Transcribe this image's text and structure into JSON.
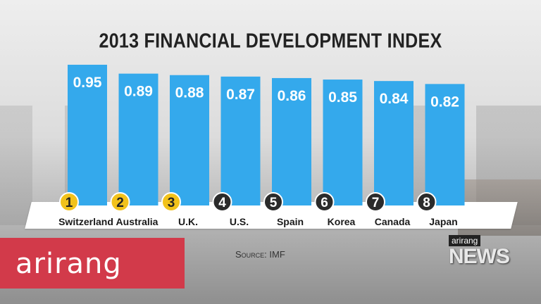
{
  "chart_data": {
    "type": "bar",
    "title": "2013 FINANCIAL DEVELOPMENT INDEX",
    "categories": [
      "Switzerland",
      "Australia",
      "U.K.",
      "U.S.",
      "Spain",
      "Korea",
      "Canada",
      "Japan"
    ],
    "ranks": [
      "1",
      "2",
      "3",
      "4",
      "5",
      "6",
      "7",
      "8"
    ],
    "values": [
      0.95,
      0.89,
      0.88,
      0.87,
      0.86,
      0.85,
      0.84,
      0.82
    ],
    "value_labels": [
      "0.95",
      "0.89",
      "0.88",
      "0.87",
      "0.86",
      "0.85",
      "0.84",
      "0.82"
    ],
    "bar_color": "#34a9ec",
    "rank_highlight_color": "#f2c21b",
    "highlighted_ranks": 3,
    "xlabel": "",
    "ylabel": ""
  },
  "source": "Source: IMF",
  "logo": {
    "text": "arirang",
    "color": "#d23a4a"
  },
  "news_badge": {
    "top": "arirang",
    "main": "NEWS"
  }
}
